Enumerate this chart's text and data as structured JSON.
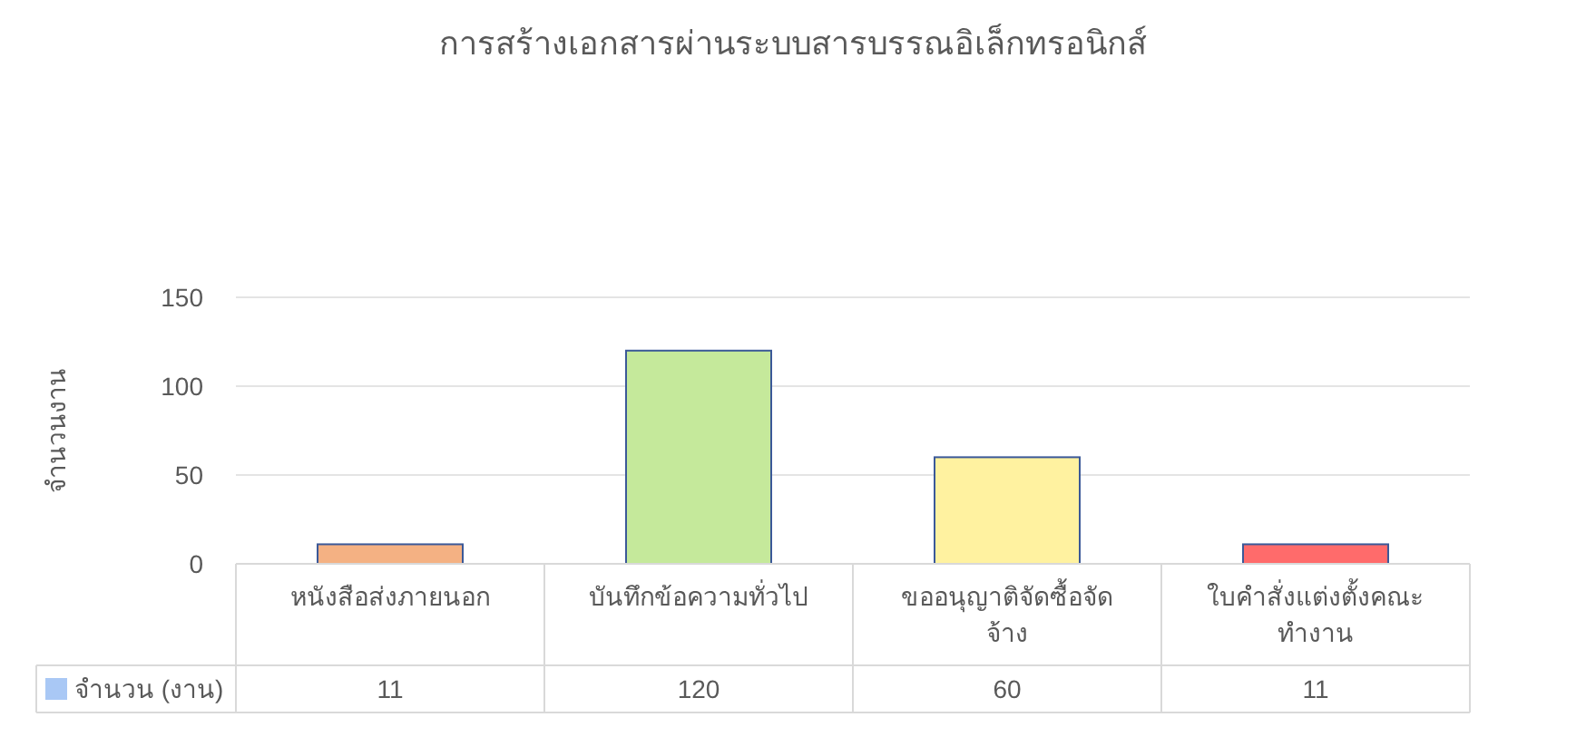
{
  "chart_data": {
    "type": "bar",
    "title": "การสร้างเอกสารผ่านระบบสารบรรณอิเล็กทรอนิกส์",
    "ylabel": "จำนวนงาน",
    "categories": [
      "หนังสือส่งภายนอก",
      "บันทึกข้อความทั่วไป",
      "ขออนุญาติจัดซื้อจัดจ้าง",
      "ใบคำสั่งแต่งตั้งคณะทำงาน"
    ],
    "series": [
      {
        "name": "จำนวน (งาน)",
        "color": "#a9c8f5",
        "colors": [
          "#f4b183",
          "#c5e99b",
          "#fff2a0",
          "#ff6b6b"
        ],
        "values": [
          11,
          120,
          60,
          11
        ]
      }
    ],
    "ylim": [
      0,
      150
    ],
    "yticks": [
      0,
      50,
      100,
      150
    ],
    "grid": "y",
    "legend": "bottom left",
    "data_labels": true
  }
}
